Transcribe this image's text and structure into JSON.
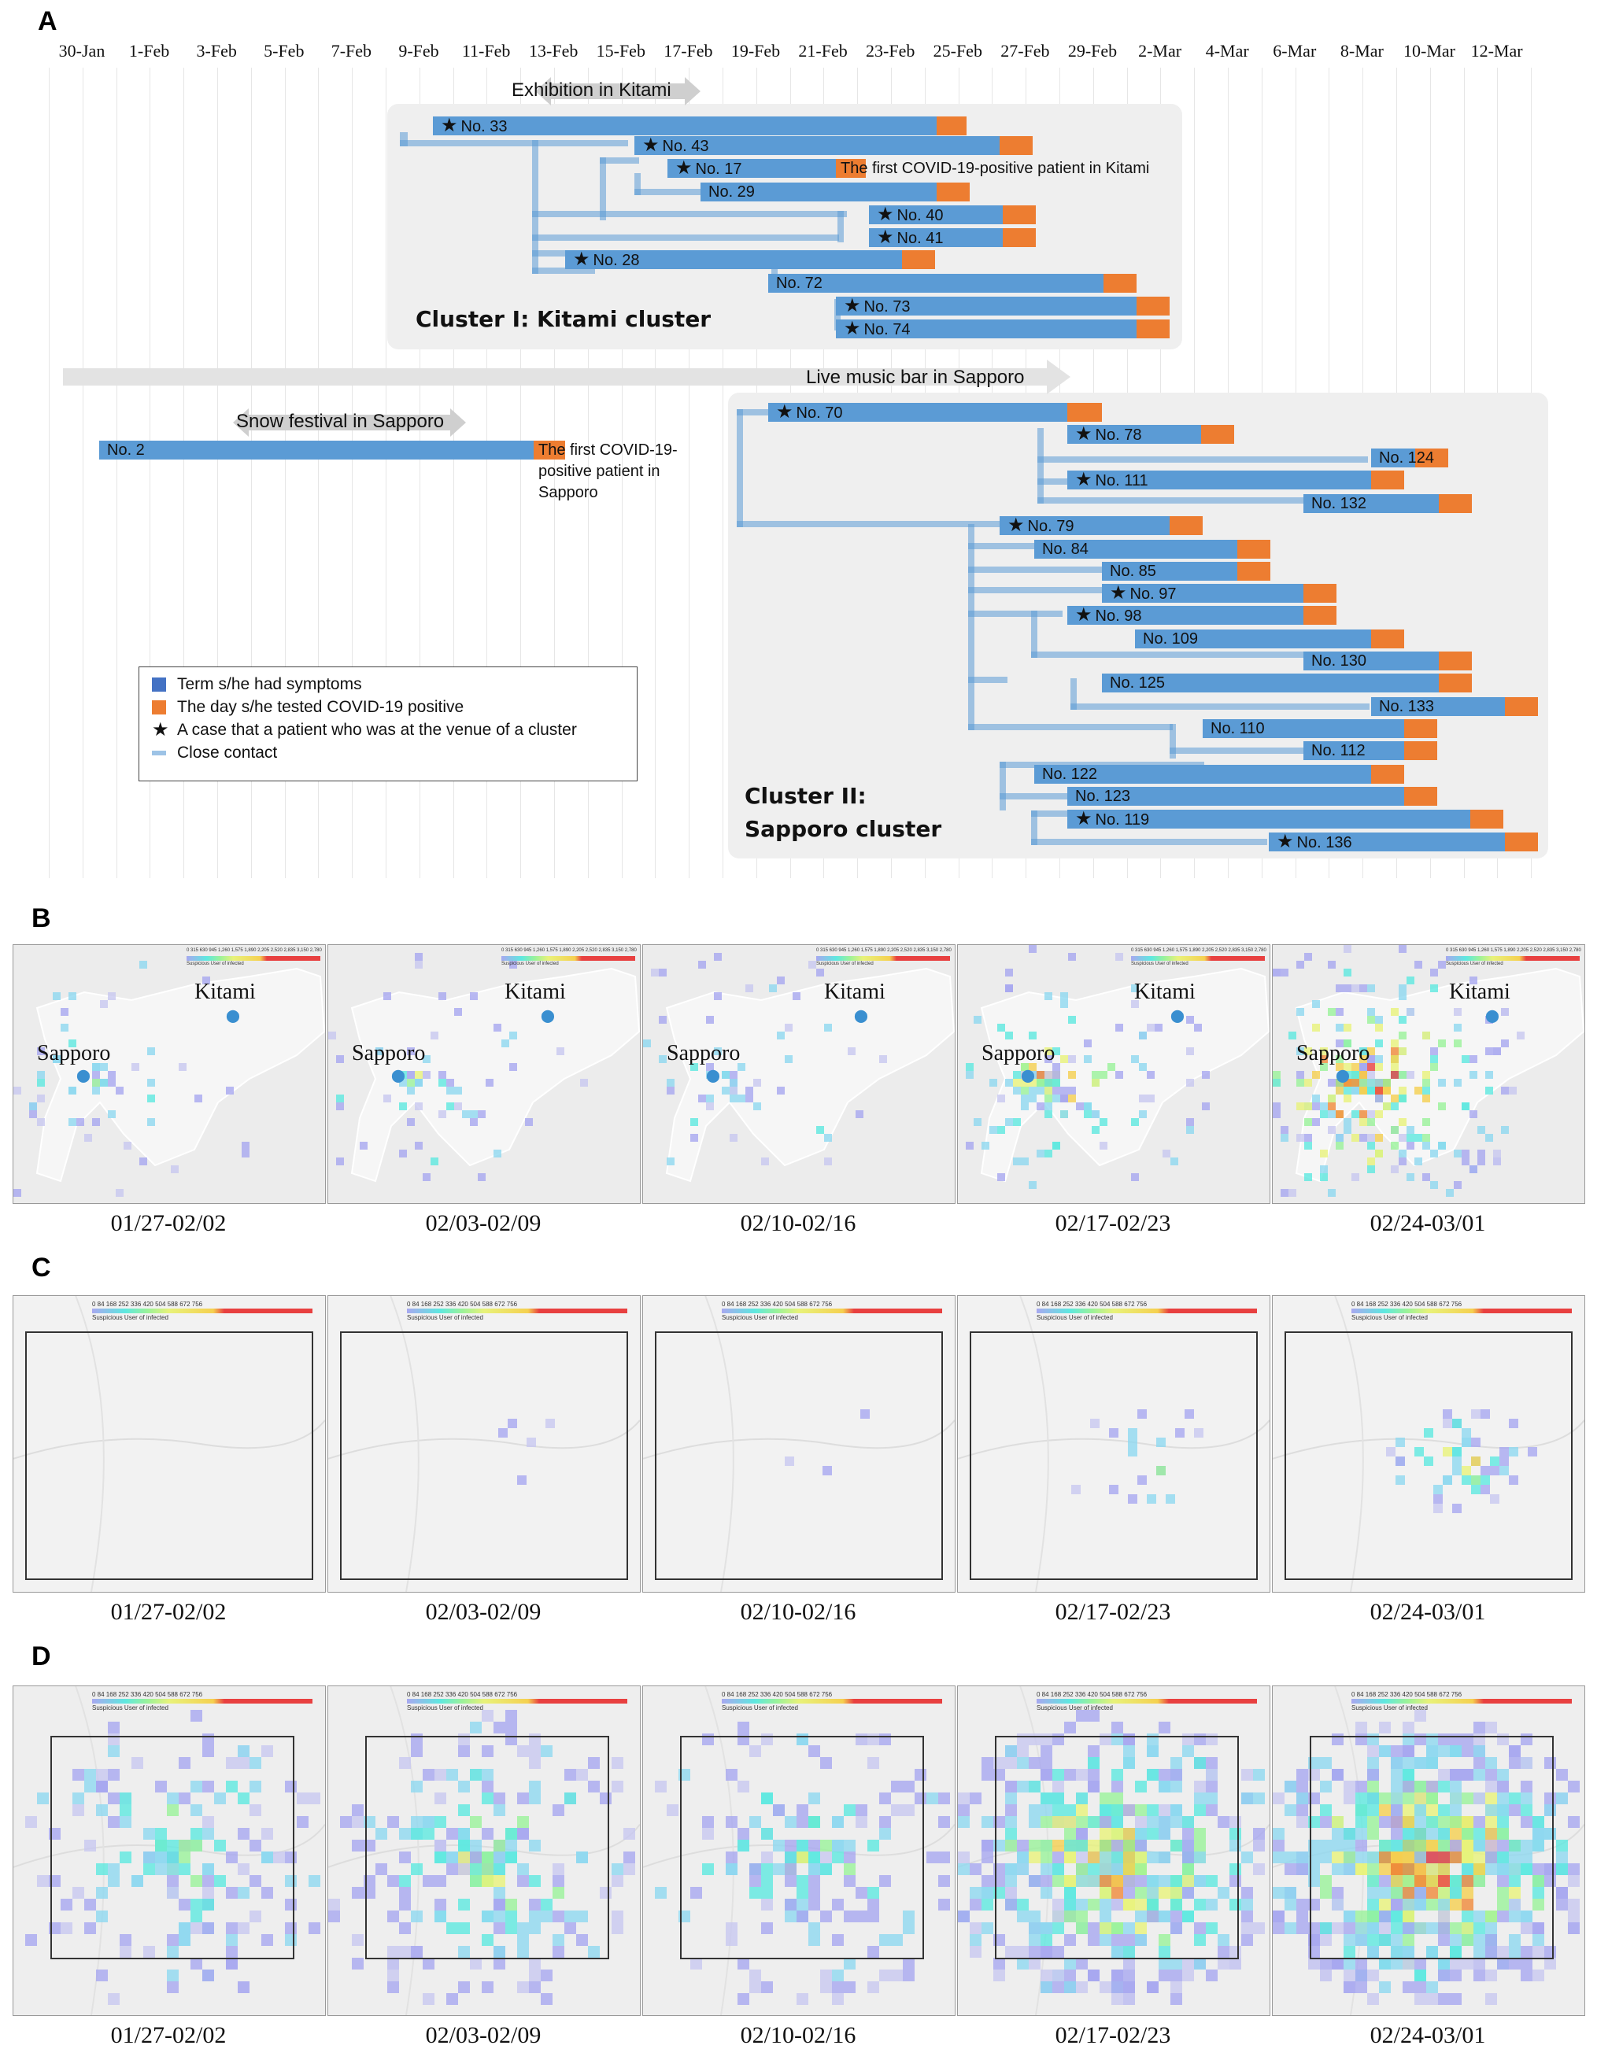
{
  "panels": {
    "a": "A",
    "b": "B",
    "c": "C",
    "d": "D"
  },
  "timeline": {
    "dates": [
      "30-Jan",
      "1-Feb",
      "3-Feb",
      "5-Feb",
      "7-Feb",
      "9-Feb",
      "11-Feb",
      "13-Feb",
      "15-Feb",
      "17-Feb",
      "19-Feb",
      "21-Feb",
      "23-Feb",
      "25-Feb",
      "27-Feb",
      "29-Feb",
      "2-Mar",
      "4-Mar",
      "6-Mar",
      "8-Mar",
      "10-Mar",
      "12-Mar"
    ],
    "events": {
      "kitami_exhibition": "Exhibition in Kitami",
      "live_music_bar": "Live music bar in Sapporo",
      "snow_festival": "Snow festival in Sapporo"
    },
    "cluster1_title": "Cluster I: Kitami cluster",
    "cluster2_title_line1": "Cluster II:",
    "cluster2_title_line2": "Sapporo cluster",
    "note_kitami": "The first COVID-19-positive patient in Kitami",
    "note_sapporo_line1": "The first COVID-19-",
    "note_sapporo_line2": "positive patient in",
    "note_sapporo_line3": "Sapporo",
    "legend": {
      "symptoms": "Term s/he had symptoms",
      "positive": "The day s/he tested COVID-19 positive",
      "venue": "A case that a patient who was at the venue of a cluster",
      "contact": "Close contact"
    },
    "colors": {
      "symptoms": "#5b9bd5",
      "positive": "#ed7d31",
      "contact": "#9dc3e6"
    },
    "cases": [
      {
        "id": "No. 33",
        "venue": true
      },
      {
        "id": "No. 43",
        "venue": true
      },
      {
        "id": "No. 17",
        "venue": true
      },
      {
        "id": "No. 29",
        "venue": false
      },
      {
        "id": "No. 40",
        "venue": true
      },
      {
        "id": "No. 41",
        "venue": true
      },
      {
        "id": "No. 28",
        "venue": true
      },
      {
        "id": "No. 72",
        "venue": false
      },
      {
        "id": "No. 73",
        "venue": true
      },
      {
        "id": "No. 74",
        "venue": true
      },
      {
        "id": "No. 2",
        "venue": false
      },
      {
        "id": "No. 70",
        "venue": true
      },
      {
        "id": "No. 78",
        "venue": true
      },
      {
        "id": "No. 124",
        "venue": false
      },
      {
        "id": "No. 111",
        "venue": true
      },
      {
        "id": "No. 132",
        "venue": false
      },
      {
        "id": "No. 79",
        "venue": true
      },
      {
        "id": "No. 84",
        "venue": false
      },
      {
        "id": "No. 85",
        "venue": false
      },
      {
        "id": "No. 97",
        "venue": true
      },
      {
        "id": "No. 98",
        "venue": true
      },
      {
        "id": "No. 109",
        "venue": false
      },
      {
        "id": "No. 130",
        "venue": false
      },
      {
        "id": "No. 125",
        "venue": false
      },
      {
        "id": "No. 133",
        "venue": false
      },
      {
        "id": "No. 110",
        "venue": false
      },
      {
        "id": "No. 112",
        "venue": false
      },
      {
        "id": "No. 122",
        "venue": false
      },
      {
        "id": "No. 123",
        "venue": false
      },
      {
        "id": "No. 119",
        "venue": true
      },
      {
        "id": "No. 136",
        "venue": true
      }
    ]
  },
  "maps": {
    "periods": [
      "01/27-02/02",
      "02/03-02/09",
      "02/10-02/16",
      "02/17-02/23",
      "02/24-03/01"
    ],
    "b_cities": {
      "kitami": "Kitami",
      "sapporo": "Sapporo"
    },
    "scale_b": "0  315  630  945  1,260  1,575  1,890  2,205  2,520  2,835  3,150  2,780",
    "scale_cd": "0    84    168   252   336   420   504   588   672   756",
    "scale_caption": "Suspicious User of infected",
    "heat_colors": [
      "#c8c8f0",
      "#a8a8f0",
      "#8fd8f0",
      "#5ee8e0",
      "#9af29a",
      "#e8f27a",
      "#f5d050",
      "#f08a3a",
      "#e84040"
    ]
  }
}
